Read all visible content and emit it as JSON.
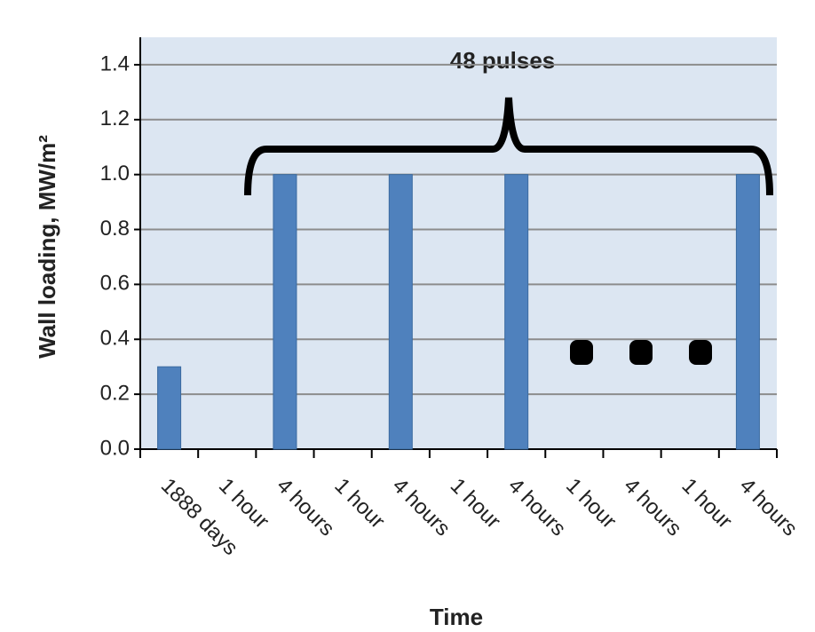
{
  "chart_data": {
    "type": "bar",
    "title": "48 pulses",
    "x_label": "Time",
    "y_label": "Wall loading, MW/m²",
    "categories": [
      "1888 days",
      "1 hour",
      "4 hours",
      "1 hour",
      "4 hours",
      "1 hour",
      "4 hours",
      "1 hour",
      "4 hours",
      "1 hour",
      "4 hours"
    ],
    "values": [
      0.3,
      0,
      1.0,
      0,
      1.0,
      0,
      1.0,
      0,
      null,
      0,
      1.0
    ],
    "color": "#4f81bd",
    "ylim": [
      0,
      1.5
    ],
    "yticks": [
      {
        "value": 0,
        "label": "0.0"
      },
      0.2,
      0.4,
      0.6,
      0.8,
      {
        "value": 1,
        "label": "1.0"
      },
      1.2,
      1.4
    ],
    "grid": true
  }
}
